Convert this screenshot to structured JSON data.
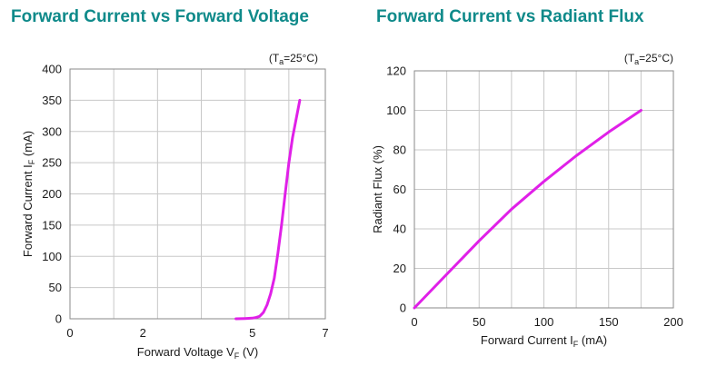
{
  "chart_data": [
    {
      "type": "line",
      "title": "Forward Current vs Forward Voltage",
      "condition": {
        "prefix": "(T",
        "sub": "a",
        "suffix": "=25°C)"
      },
      "xlabel": {
        "prefix": "Forward Voltage V",
        "sub": "F",
        "suffix": " (V)"
      },
      "ylabel": {
        "prefix": "Forward Current I",
        "sub": "F",
        "suffix": " (mA)"
      },
      "xlim": [
        0,
        7
      ],
      "ylim": [
        0,
        400
      ],
      "x_ticks": [
        0,
        2,
        5,
        7
      ],
      "y_ticks": [
        0,
        50,
        100,
        150,
        200,
        250,
        300,
        350,
        400
      ],
      "x_grid": [
        0,
        1.2,
        2.4,
        3.6,
        4.8,
        6.0,
        7.0
      ],
      "grid": true,
      "line_color": "#e020e8",
      "series": [
        {
          "x": [
            4.55,
            4.8,
            5.0,
            5.1,
            5.2,
            5.3,
            5.4,
            5.5,
            5.6,
            5.7,
            5.8,
            5.9,
            6.0,
            6.1,
            6.2,
            6.3
          ],
          "y": [
            0,
            0.5,
            1,
            2,
            4,
            10,
            22,
            40,
            65,
            105,
            150,
            200,
            250,
            290,
            320,
            350
          ]
        }
      ]
    },
    {
      "type": "line",
      "title": "Forward Current vs Radiant Flux",
      "condition": {
        "prefix": "(T",
        "sub": "a",
        "suffix": "=25°C)"
      },
      "xlabel": {
        "prefix": "Forward Current I",
        "sub": "F",
        "suffix": " (mA)"
      },
      "ylabel": {
        "prefix": "Radiant Flux (%)",
        "sub": "",
        "suffix": ""
      },
      "xlim": [
        0,
        200
      ],
      "ylim": [
        0,
        120
      ],
      "x_ticks": [
        0,
        50,
        100,
        150,
        200
      ],
      "y_ticks": [
        0,
        20,
        40,
        60,
        80,
        100,
        120
      ],
      "x_grid": [
        0,
        25,
        50,
        75,
        100,
        125,
        150,
        175,
        200
      ],
      "grid": true,
      "line_color": "#e020e8",
      "series": [
        {
          "x": [
            0,
            25,
            50,
            75,
            100,
            125,
            150,
            175
          ],
          "y": [
            0,
            17,
            34,
            50,
            64,
            77,
            89,
            100
          ]
        }
      ]
    }
  ]
}
